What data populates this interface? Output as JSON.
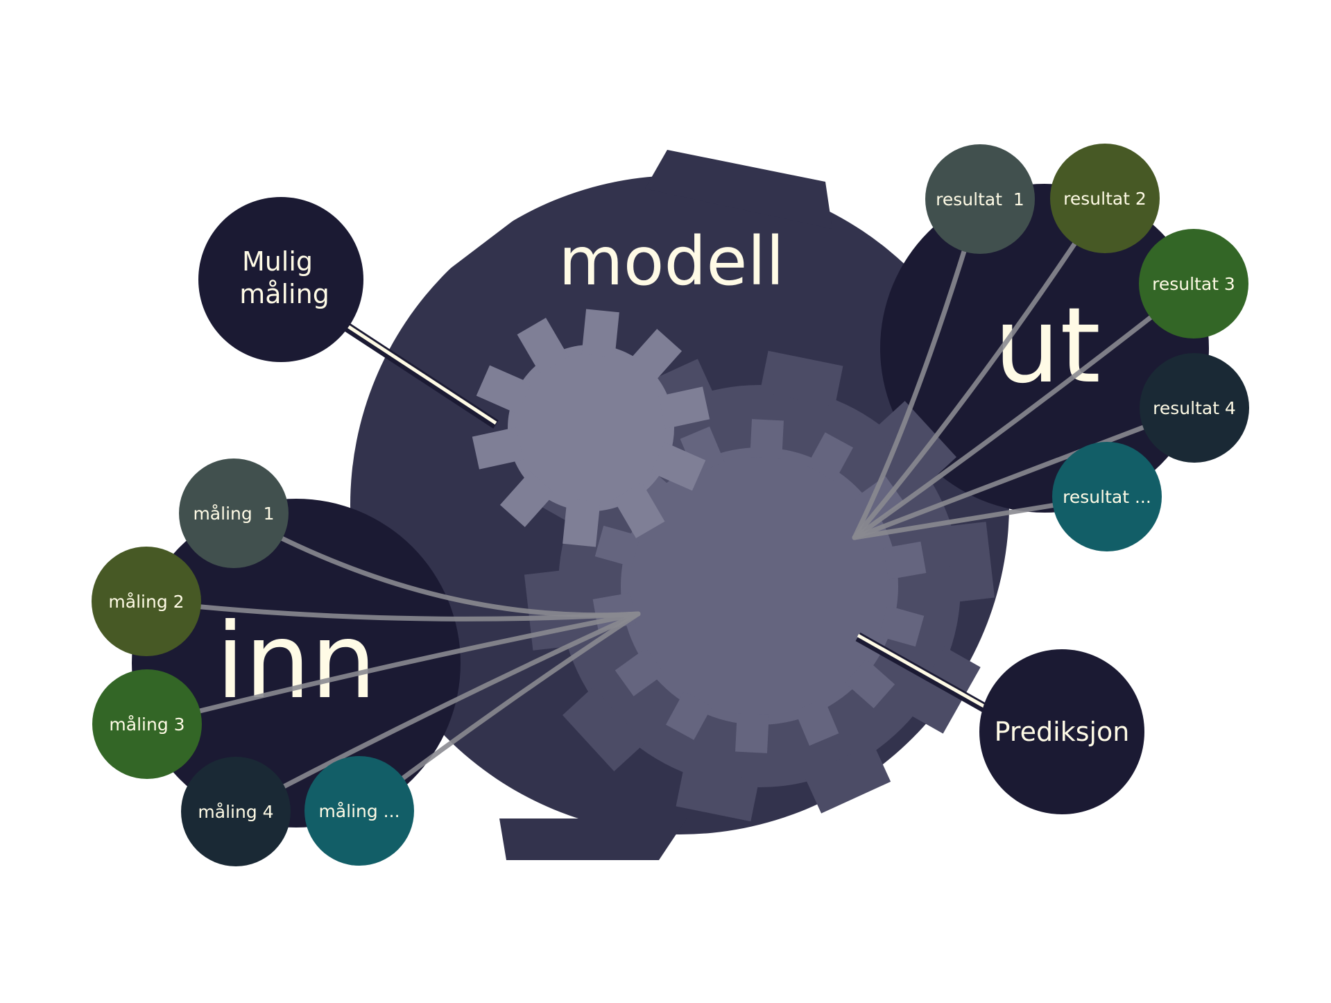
{
  "diagram": {
    "model_label": "modell",
    "input_label": "inn",
    "output_label": "ut",
    "possible_measurement_label": [
      "Mulig",
      "måling"
    ],
    "prediction_label": "Prediksjon",
    "measurements": [
      {
        "label": "måling  1",
        "color": "#41504e"
      },
      {
        "label": "måling 2",
        "color": "#475925"
      },
      {
        "label": "måling 3",
        "color": "#336626"
      },
      {
        "label": "måling 4",
        "color": "#1a2935"
      },
      {
        "label": "måling ...",
        "color": "#125e67"
      }
    ],
    "results": [
      {
        "label": "resultat  1",
        "color": "#41504e"
      },
      {
        "label": "resultat 2",
        "color": "#475925"
      },
      {
        "label": "resultat 3",
        "color": "#336626"
      },
      {
        "label": "resultat 4",
        "color": "#1a2935"
      },
      {
        "label": "resultat ...",
        "color": "#125e67"
      }
    ],
    "colors": {
      "model_body": "#33334d",
      "region_dark": "#1b1a33",
      "gear_small": "#7f7f96",
      "gear_large_outer": "#4c4c66",
      "gear_large_inner": "#65657f",
      "label_text": "#fffbe6",
      "connector": "#8a8a90"
    }
  }
}
